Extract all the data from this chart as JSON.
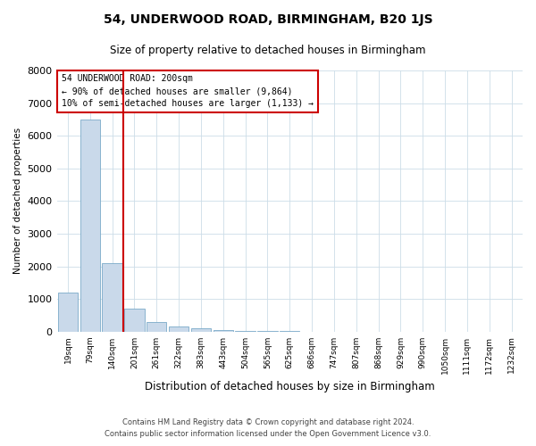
{
  "title": "54, UNDERWOOD ROAD, BIRMINGHAM, B20 1JS",
  "subtitle": "Size of property relative to detached houses in Birmingham",
  "xlabel": "Distribution of detached houses by size in Birmingham",
  "ylabel": "Number of detached properties",
  "footnote1": "Contains HM Land Registry data © Crown copyright and database right 2024.",
  "footnote2": "Contains public sector information licensed under the Open Government Licence v3.0.",
  "annotation_line1": "54 UNDERWOOD ROAD: 200sqm",
  "annotation_line2": "← 90% of detached houses are smaller (9,864)",
  "annotation_line3": "10% of semi-detached houses are larger (1,133) →",
  "bar_color": "#c9d9ea",
  "bar_edge_color": "#7aaac8",
  "vline_color": "#cc0000",
  "annotation_box_edge_color": "#cc0000",
  "categories": [
    "19sqm",
    "79sqm",
    "140sqm",
    "201sqm",
    "261sqm",
    "322sqm",
    "383sqm",
    "443sqm",
    "504sqm",
    "565sqm",
    "625sqm",
    "686sqm",
    "747sqm",
    "807sqm",
    "868sqm",
    "929sqm",
    "990sqm",
    "1050sqm",
    "1111sqm",
    "1172sqm",
    "1232sqm"
  ],
  "values": [
    1200,
    6500,
    2100,
    700,
    300,
    150,
    90,
    50,
    30,
    10,
    5,
    0,
    0,
    0,
    0,
    0,
    0,
    0,
    0,
    0,
    0
  ],
  "ylim": [
    0,
    8000
  ],
  "yticks": [
    0,
    1000,
    2000,
    3000,
    4000,
    5000,
    6000,
    7000,
    8000
  ],
  "vline_x_index": 3,
  "background_color": "#ffffff",
  "grid_color": "#ccdde8"
}
